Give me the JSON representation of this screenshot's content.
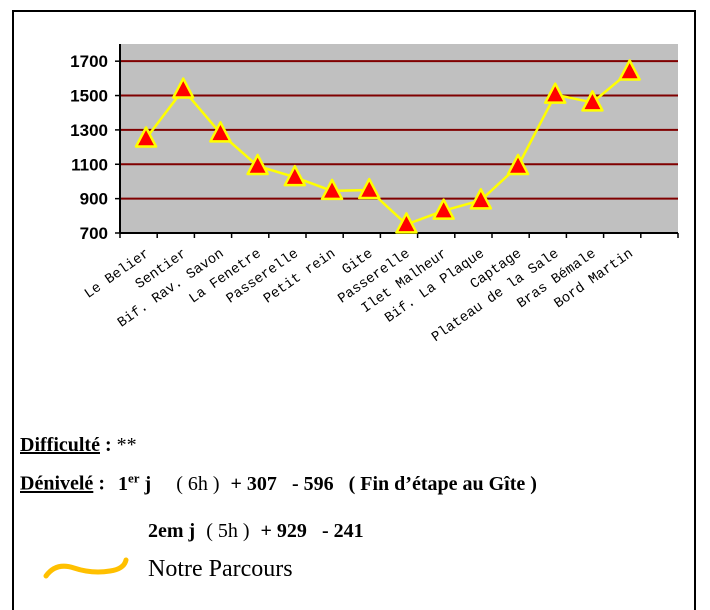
{
  "chart_data": {
    "type": "line",
    "categories": [
      "Le Belier",
      "Sentier",
      "Bif. Rav. Savon",
      "La Fenetre",
      "Passerelle",
      "Petit rein",
      "Gite",
      "Passerelle",
      "Ilet Malheur",
      "Bif. La Plaque",
      "Captage",
      "Plateau de la Sale",
      "Bras Bémale",
      "Bord Martin"
    ],
    "values": [
      1250,
      1535,
      1280,
      1090,
      1025,
      945,
      950,
      750,
      830,
      890,
      1090,
      1505,
      1460,
      1640
    ],
    "yticks": [
      1700,
      1500,
      1300,
      1100,
      900,
      700
    ],
    "ylim": [
      700,
      1800
    ],
    "title": "",
    "xlabel": "",
    "ylabel": "",
    "colors": {
      "plot_bg": "#c0c0c0",
      "grid": "#800000",
      "line": "#ffff00",
      "marker_fill": "#ff0000",
      "marker_stroke": "#ffff00"
    }
  },
  "info": {
    "difficulty_label": "Difficulté",
    "difficulty_colon": " :",
    "difficulty_value": "**",
    "denivele_label": "Dénivelé",
    "denivele_colon": " :",
    "day1_num": "1",
    "day1_sup": "er",
    "day1_j": " j",
    "day1_time": "( 6h )",
    "day1_up": "+ 307",
    "day1_down": "- 596",
    "day1_note": "( Fin d’étape au Gîte )",
    "day2_label": "2em j",
    "day2_time": "( 5h )",
    "day2_up": "+ 929",
    "day2_down": "- 241"
  },
  "legend": {
    "text": "Notre Parcours",
    "color": "#ffc000"
  }
}
